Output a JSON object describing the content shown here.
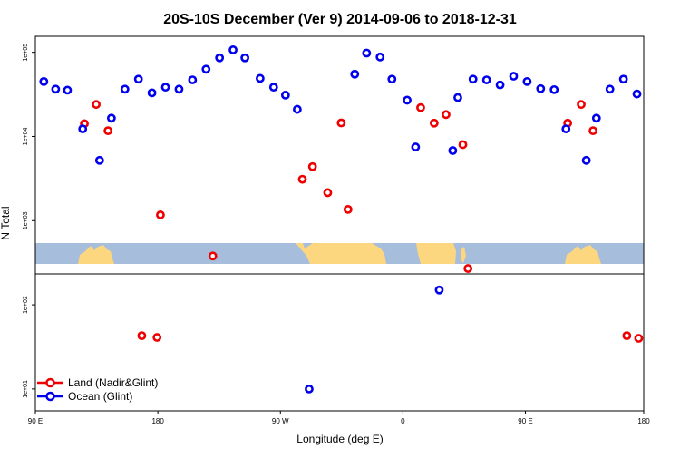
{
  "chart_data": {
    "type": "scatter",
    "title": "20S-10S December (Ver 9)   2014-09-06 to 2018-12-31",
    "xlabel": "Longitude (deg E)",
    "ylabel": "N Total",
    "yscale": "log",
    "ylim": [
      5.5,
      155000
    ],
    "xlim": [
      0,
      360
    ],
    "xticks": [
      {
        "pos": 0,
        "label": "90 E"
      },
      {
        "pos": 72.5,
        "label": "180"
      },
      {
        "pos": 145,
        "label": "90 W"
      },
      {
        "pos": 217.5,
        "label": "0"
      },
      {
        "pos": 290,
        "label": "90 E"
      },
      {
        "pos": 360,
        "label": "180"
      }
    ],
    "yticks": [
      {
        "value": 10,
        "label": "1e+01"
      },
      {
        "value": 100,
        "label": "1e+02"
      },
      {
        "value": 1000,
        "label": "1e+03"
      },
      {
        "value": 10000,
        "label": "1e+04"
      },
      {
        "value": 100000,
        "label": "1e+05"
      }
    ],
    "legend": [
      {
        "name": "Land (Nadir&Glint)",
        "color": "#ee0000"
      },
      {
        "name": "Ocean (Glint)",
        "color": "#0000ee"
      }
    ],
    "map_colors": {
      "ocean": "#a6bddb",
      "land": "#fcd77f"
    },
    "series": [
      {
        "name": "Land (Nadir&Glint)",
        "color": "#ee0000",
        "points": [
          {
            "x": 29,
            "y": 14200
          },
          {
            "x": 36,
            "y": 24000
          },
          {
            "x": 43,
            "y": 11700
          },
          {
            "x": 63,
            "y": 43
          },
          {
            "x": 72,
            "y": 41
          },
          {
            "x": 74,
            "y": 1170
          },
          {
            "x": 105,
            "y": 380
          },
          {
            "x": 158,
            "y": 3100
          },
          {
            "x": 164,
            "y": 4380
          },
          {
            "x": 173,
            "y": 2150
          },
          {
            "x": 181,
            "y": 14500
          },
          {
            "x": 185,
            "y": 1360
          },
          {
            "x": 228,
            "y": 22000
          },
          {
            "x": 236,
            "y": 14400
          },
          {
            "x": 243,
            "y": 18200
          },
          {
            "x": 253,
            "y": 8000
          },
          {
            "x": 256,
            "y": 270
          },
          {
            "x": 315,
            "y": 14400
          },
          {
            "x": 323,
            "y": 24000
          },
          {
            "x": 330,
            "y": 11700
          },
          {
            "x": 350,
            "y": 43
          },
          {
            "x": 357,
            "y": 40
          }
        ]
      },
      {
        "name": "Ocean (Glint)",
        "color": "#0000ee",
        "points": [
          {
            "x": 5,
            "y": 45000
          },
          {
            "x": 12,
            "y": 36500
          },
          {
            "x": 19,
            "y": 35500
          },
          {
            "x": 28,
            "y": 12300
          },
          {
            "x": 38,
            "y": 5200
          },
          {
            "x": 45,
            "y": 16500
          },
          {
            "x": 53,
            "y": 36500
          },
          {
            "x": 61,
            "y": 48000
          },
          {
            "x": 69,
            "y": 33000
          },
          {
            "x": 77,
            "y": 38500
          },
          {
            "x": 85,
            "y": 36500
          },
          {
            "x": 93,
            "y": 47000
          },
          {
            "x": 101,
            "y": 63000
          },
          {
            "x": 109,
            "y": 86000
          },
          {
            "x": 117,
            "y": 107000
          },
          {
            "x": 124,
            "y": 86000
          },
          {
            "x": 133,
            "y": 49000
          },
          {
            "x": 141,
            "y": 38500
          },
          {
            "x": 148,
            "y": 31000
          },
          {
            "x": 155,
            "y": 21000
          },
          {
            "x": 162,
            "y": 10
          },
          {
            "x": 189,
            "y": 55000
          },
          {
            "x": 196,
            "y": 98000
          },
          {
            "x": 204,
            "y": 88000
          },
          {
            "x": 211,
            "y": 48000
          },
          {
            "x": 220,
            "y": 27000
          },
          {
            "x": 225,
            "y": 7500
          },
          {
            "x": 239,
            "y": 150
          },
          {
            "x": 247,
            "y": 6800
          },
          {
            "x": 250,
            "y": 29000
          },
          {
            "x": 259,
            "y": 48000
          },
          {
            "x": 267,
            "y": 47000
          },
          {
            "x": 275,
            "y": 41000
          },
          {
            "x": 283,
            "y": 52000
          },
          {
            "x": 291,
            "y": 45000
          },
          {
            "x": 299,
            "y": 37000
          },
          {
            "x": 307,
            "y": 36000
          },
          {
            "x": 314,
            "y": 12300
          },
          {
            "x": 326,
            "y": 5200
          },
          {
            "x": 332,
            "y": 16500
          },
          {
            "x": 340,
            "y": 36500
          },
          {
            "x": 348,
            "y": 48000
          },
          {
            "x": 356,
            "y": 32000
          }
        ]
      }
    ]
  }
}
